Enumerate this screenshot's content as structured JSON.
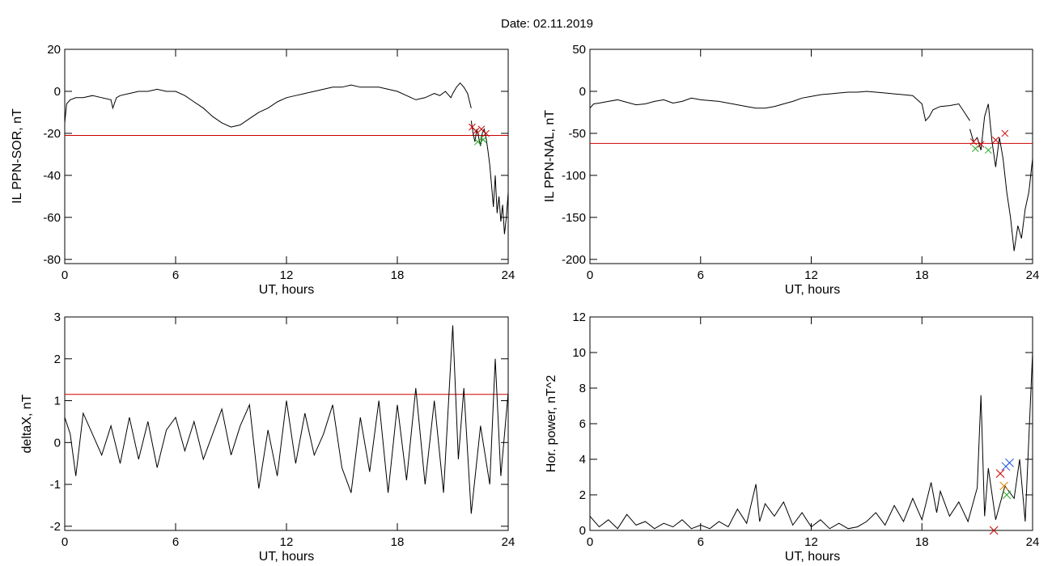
{
  "figure": {
    "title": "Date:  02.11.2019"
  },
  "colors": {
    "trace": "#000000",
    "threshold": "#cc0000",
    "event_blue": "#1f4fd6",
    "event_green": "#22aa22",
    "marker_red": "#cc0000",
    "marker_blue": "#2255dd",
    "marker_green": "#22aa22",
    "marker_orange": "#dd8800"
  },
  "chart_data": [
    {
      "type": "line",
      "panel": "top-left",
      "xlabel": "UT, hours",
      "ylabel": "IL PPN-SOR, nT",
      "xlim": [
        0,
        24
      ],
      "ylim": [
        -82,
        20
      ],
      "xticks": [
        0,
        6,
        12,
        18,
        24
      ],
      "yticks": [
        20,
        0,
        -20,
        -40,
        -60,
        -80
      ],
      "threshold": -21,
      "series": [
        {
          "x": [
            0,
            0.1,
            0.3,
            0.6,
            1,
            1.5,
            2,
            2.5,
            2.6,
            2.8,
            3,
            3.5,
            4,
            4.5,
            5,
            5.5,
            6,
            6.5,
            7,
            7.5,
            8,
            8.5,
            9,
            9.5,
            10,
            10.5,
            11,
            11.5,
            12,
            12.5,
            13,
            13.5,
            14,
            14.5,
            15,
            15.5,
            16,
            16.5,
            17,
            17.5,
            18,
            18.5,
            19,
            19.5,
            20,
            20.3,
            20.6,
            20.9,
            21,
            21.2,
            21.4,
            21.6,
            21.8,
            22
          ],
          "y": [
            -15,
            -6,
            -4,
            -3,
            -3,
            -2,
            -3,
            -4,
            -8,
            -3,
            -2,
            -1,
            0,
            0,
            1,
            0,
            0,
            -2,
            -5,
            -8,
            -12,
            -15,
            -17,
            -16,
            -13,
            -10,
            -8,
            -5,
            -3,
            -2,
            -1,
            0,
            1,
            2,
            2,
            3,
            2,
            2,
            2,
            1,
            0,
            -2,
            -4,
            -3,
            -1,
            -2,
            0,
            -3,
            -1,
            2,
            4,
            2,
            -1,
            -8
          ]
        },
        {
          "x": [
            22,
            22.1,
            22.2,
            22.3,
            22.4,
            22.5,
            22.6,
            22.7,
            22.8,
            22.9,
            23,
            23.1,
            23.2,
            23.3,
            23.4,
            23.5,
            23.6,
            23.7,
            23.8,
            23.9,
            24
          ],
          "y": [
            -14,
            -20,
            -24,
            -18,
            -22,
            -26,
            -20,
            -18,
            -22,
            -28,
            -35,
            -45,
            -55,
            -40,
            -58,
            -50,
            -62,
            -54,
            -68,
            -60,
            -48
          ]
        }
      ]
    },
    {
      "type": "line",
      "panel": "top-right",
      "xlabel": "UT, hours",
      "ylabel": "IL PPN-NAL, nT",
      "xlim": [
        0,
        24
      ],
      "ylim": [
        -205,
        50
      ],
      "xticks": [
        0,
        6,
        12,
        18,
        24
      ],
      "yticks": [
        50,
        0,
        -50,
        -100,
        -150,
        -200
      ],
      "threshold": -62,
      "series": [
        {
          "x": [
            0,
            0.2,
            0.5,
            1,
            1.5,
            2,
            2.5,
            3,
            3.5,
            4,
            4.5,
            5,
            5.5,
            6,
            6.5,
            7,
            7.5,
            8,
            8.5,
            9,
            9.5,
            10,
            10.5,
            11,
            11.5,
            12,
            12.5,
            13,
            13.5,
            14,
            14.5,
            15,
            15.5,
            16,
            16.5,
            17,
            17.5,
            18,
            18.2,
            18.4,
            18.6,
            18.8,
            19,
            19.5,
            20,
            20.3,
            20.6
          ],
          "y": [
            -20,
            -15,
            -14,
            -12,
            -10,
            -13,
            -16,
            -15,
            -12,
            -10,
            -14,
            -12,
            -8,
            -10,
            -11,
            -12,
            -14,
            -16,
            -18,
            -20,
            -20,
            -18,
            -15,
            -12,
            -8,
            -6,
            -4,
            -3,
            -2,
            -1,
            -1,
            0,
            -1,
            -2,
            -3,
            -4,
            -5,
            -15,
            -35,
            -30,
            -22,
            -20,
            -18,
            -17,
            -15,
            -25,
            -35
          ]
        },
        {
          "x": [
            20.6,
            20.8,
            21,
            21.2,
            21.4,
            21.6,
            21.8,
            22,
            22.2,
            22.4,
            22.6,
            22.8,
            23,
            23.2,
            23.4,
            23.6,
            23.8,
            24
          ],
          "y": [
            -45,
            -60,
            -55,
            -70,
            -30,
            -15,
            -60,
            -90,
            -55,
            -80,
            -120,
            -150,
            -190,
            -160,
            -175,
            -140,
            -120,
            -80
          ]
        }
      ]
    },
    {
      "type": "line",
      "panel": "bottom-left",
      "xlabel": "UT, hours",
      "ylabel": "deltaX, nT",
      "xlim": [
        0,
        24
      ],
      "ylim": [
        -2.1,
        3
      ],
      "xticks": [
        0,
        6,
        12,
        18,
        24
      ],
      "yticks": [
        3,
        2,
        1,
        0,
        -1,
        -2
      ],
      "threshold": 1.15,
      "series": [
        {
          "x": [
            0,
            0.3,
            0.6,
            1,
            1.5,
            2,
            2.5,
            3,
            3.5,
            4,
            4.5,
            5,
            5.5,
            6,
            6.5,
            7,
            7.5,
            8,
            8.5,
            9,
            9.5,
            10,
            10.5,
            11,
            11.5,
            12,
            12.5,
            13,
            13.5,
            14,
            14.5,
            15,
            15.5,
            16,
            16.5,
            17,
            17.5,
            18,
            18.5,
            19,
            19.5,
            20,
            20.5,
            21,
            21.3,
            21.6,
            22,
            22.5,
            23,
            23.3,
            23.6,
            24
          ],
          "y": [
            0.6,
            0.2,
            -0.8,
            0.7,
            0.2,
            -0.3,
            0.4,
            -0.5,
            0.6,
            -0.4,
            0.5,
            -0.6,
            0.3,
            0.6,
            -0.2,
            0.5,
            -0.4,
            0.2,
            0.8,
            -0.3,
            0.4,
            0.9,
            -1.1,
            0.3,
            -0.8,
            1.0,
            -0.5,
            0.7,
            -0.3,
            0.2,
            0.9,
            -0.6,
            -1.2,
            0.6,
            -0.7,
            1.0,
            -1.2,
            0.9,
            -0.9,
            1.3,
            -1.0,
            1.0,
            -1.2,
            2.8,
            -0.4,
            1.3,
            -1.7,
            0.4,
            -1.0,
            2.0,
            -0.8,
            1.2
          ]
        }
      ]
    },
    {
      "type": "line",
      "panel": "bottom-right",
      "xlabel": "UT, hours",
      "ylabel": "Hor. power, nT^2",
      "xlim": [
        0,
        24
      ],
      "ylim": [
        0,
        12
      ],
      "xticks": [
        0,
        6,
        12,
        18,
        24
      ],
      "yticks": [
        12,
        10,
        8,
        6,
        4,
        2,
        0
      ],
      "series": [
        {
          "x": [
            0,
            0.5,
            1,
            1.5,
            2,
            2.5,
            3,
            3.5,
            4,
            4.5,
            5,
            5.5,
            6,
            6.5,
            7,
            7.5,
            8,
            8.5,
            9,
            9.2,
            9.5,
            10,
            10.5,
            11,
            11.5,
            12,
            12.5,
            13,
            13.5,
            14,
            14.5,
            15,
            15.5,
            16,
            16.5,
            17,
            17.5,
            18,
            18.5,
            18.8,
            19,
            19.5,
            20,
            20.5,
            21,
            21.2,
            21.4,
            21.6,
            22,
            22.5,
            23,
            23.3,
            23.6,
            24
          ],
          "y": [
            0.8,
            0.2,
            0.6,
            0.1,
            0.9,
            0.3,
            0.5,
            0.1,
            0.4,
            0.2,
            0.6,
            0.1,
            0.3,
            0.1,
            0.5,
            0.2,
            1.2,
            0.4,
            2.6,
            0.5,
            1.5,
            0.8,
            1.6,
            0.3,
            1.0,
            0.2,
            0.6,
            0.1,
            0.4,
            0.1,
            0.2,
            0.5,
            1.0,
            0.3,
            1.4,
            0.5,
            1.8,
            0.6,
            2.7,
            1.0,
            2.2,
            0.8,
            1.6,
            0.5,
            2.4,
            7.6,
            0.8,
            3.5,
            0.6,
            2.5,
            1.8,
            4.0,
            0.5,
            10.0
          ]
        }
      ]
    }
  ]
}
